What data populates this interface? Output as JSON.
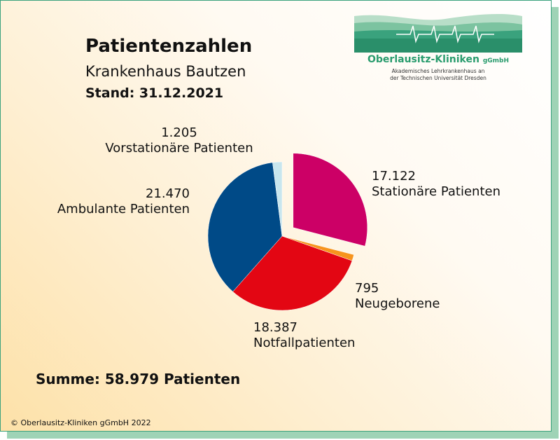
{
  "logo": {
    "name": "Oberlausitz-Kliniken",
    "suffix": "gGmbH",
    "tagline_1": "Akademisches Lehrkrankenhaus an",
    "tagline_2": "der Technischen Universität Dresden"
  },
  "footer": {
    "summary": "Summe: 58.979 Patienten",
    "copyright": "© Oberlausitz-Kliniken gGmbH 2022"
  },
  "chart_data": {
    "type": "pie",
    "title": "Patientenzahlen",
    "subtitle": "Krankenhaus Bautzen",
    "date": "Stand: 31.12.2021",
    "slices": [
      {
        "label": "Stationäre Patienten",
        "value": 17122,
        "display": "17.122",
        "color": "#cc0066",
        "exploded": true
      },
      {
        "label": "Neugeborene",
        "value": 795,
        "display": "795",
        "color": "#f7941d",
        "exploded": false
      },
      {
        "label": "Notfallpatienten",
        "value": 18387,
        "display": "18.387",
        "color": "#e30613",
        "exploded": false
      },
      {
        "label": "Ambulante Patienten",
        "value": 21470,
        "display": "21.470",
        "color": "#004a87",
        "exploded": false
      },
      {
        "label": "Vorstationäre Patienten",
        "value": 1205,
        "display": "1.205",
        "color": "#c8e6ee",
        "exploded": false
      }
    ],
    "total": 58979,
    "legend": "none"
  }
}
